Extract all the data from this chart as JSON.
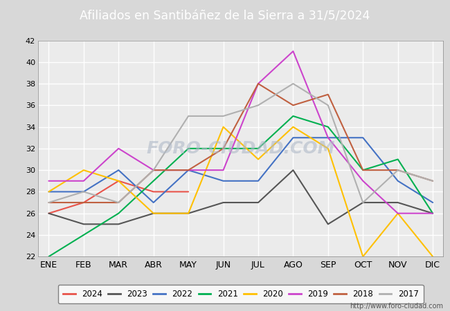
{
  "title": "Afiliados en Santibáñez de la Sierra a 31/5/2024",
  "title_color": "white",
  "title_bg_color": "#4a6fa5",
  "months": [
    "ENE",
    "FEB",
    "MAR",
    "ABR",
    "MAY",
    "JUN",
    "JUL",
    "AGO",
    "SEP",
    "OCT",
    "NOV",
    "DIC"
  ],
  "series": {
    "2024": {
      "data": [
        26,
        27,
        29,
        28,
        28,
        null,
        null,
        null,
        null,
        null,
        null,
        null
      ],
      "color": "#e8534a",
      "linewidth": 1.5
    },
    "2023": {
      "data": [
        26,
        25,
        25,
        26,
        26,
        27,
        27,
        30,
        25,
        27,
        27,
        26
      ],
      "color": "#555555",
      "linewidth": 1.5
    },
    "2022": {
      "data": [
        28,
        28,
        30,
        27,
        30,
        29,
        29,
        33,
        33,
        33,
        29,
        27
      ],
      "color": "#4472c4",
      "linewidth": 1.5
    },
    "2021": {
      "data": [
        22,
        24,
        26,
        29,
        32,
        32,
        32,
        35,
        34,
        30,
        31,
        26
      ],
      "color": "#00b050",
      "linewidth": 1.5
    },
    "2020": {
      "data": [
        28,
        30,
        29,
        26,
        26,
        34,
        31,
        34,
        32,
        22,
        26,
        22
      ],
      "color": "#ffc000",
      "linewidth": 1.5
    },
    "2019": {
      "data": [
        29,
        29,
        32,
        30,
        30,
        30,
        38,
        41,
        33,
        29,
        26,
        26
      ],
      "color": "#cc44cc",
      "linewidth": 1.5
    },
    "2018": {
      "data": [
        27,
        27,
        27,
        30,
        30,
        32,
        38,
        36,
        37,
        30,
        30,
        29
      ],
      "color": "#c06040",
      "linewidth": 1.5
    },
    "2017": {
      "data": [
        27,
        28,
        27,
        30,
        35,
        35,
        36,
        38,
        36,
        27,
        30,
        29
      ],
      "color": "#b0b0b0",
      "linewidth": 1.5
    }
  },
  "ylim": [
    22,
    42
  ],
  "yticks": [
    22,
    24,
    26,
    28,
    30,
    32,
    34,
    36,
    38,
    40,
    42
  ],
  "bg_color": "#d8d8d8",
  "plot_bg_color": "#ebebeb",
  "grid_color": "white",
  "watermark": "FORO-CIUDAD.COM",
  "url": "http://www.foro-ciudad.com",
  "legend_order": [
    "2024",
    "2023",
    "2022",
    "2021",
    "2020",
    "2019",
    "2018",
    "2017"
  ]
}
